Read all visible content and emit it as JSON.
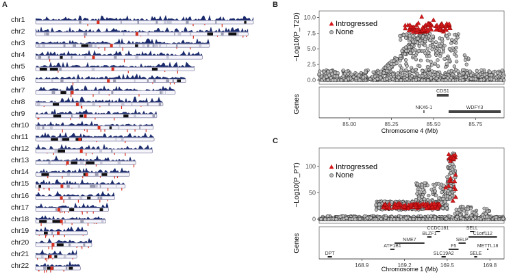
{
  "panels": {
    "a": "A",
    "b": "B",
    "c": "C"
  },
  "karyogram": {
    "chromosomes": [
      {
        "name": "chr1",
        "length": 248
      },
      {
        "name": "chr2",
        "length": 242
      },
      {
        "name": "chr3",
        "length": 198
      },
      {
        "name": "chr4",
        "length": 190
      },
      {
        "name": "chr5",
        "length": 181
      },
      {
        "name": "chr6",
        "length": 171
      },
      {
        "name": "chr7",
        "length": 159
      },
      {
        "name": "chr8",
        "length": 145
      },
      {
        "name": "chr9",
        "length": 138
      },
      {
        "name": "chr10",
        "length": 134
      },
      {
        "name": "chr11",
        "length": 135
      },
      {
        "name": "chr12",
        "length": 133
      },
      {
        "name": "chr13",
        "length": 114
      },
      {
        "name": "chr14",
        "length": 107
      },
      {
        "name": "chr15",
        "length": 102
      },
      {
        "name": "chr16",
        "length": 90
      },
      {
        "name": "chr17",
        "length": 83
      },
      {
        "name": "chr18",
        "length": 80
      },
      {
        "name": "chr19",
        "length": 59
      },
      {
        "name": "chr20",
        "length": 64
      },
      {
        "name": "chr21",
        "length": 47
      },
      {
        "name": "chr22",
        "length": 51
      }
    ],
    "colors": {
      "track": "#1a2a6c",
      "red": "#d7301f",
      "black": "#111111",
      "outline": "#8888aa"
    }
  },
  "chart_data": [
    {
      "type": "scatter",
      "panel": "B",
      "ylabel": "−Log10(P_T2D)",
      "xlabel": "Chromosome 4 (Mb)",
      "xlim": [
        84.82,
        85.92
      ],
      "ylim": [
        0,
        10.6
      ],
      "xticks": [
        "85.00",
        "85.25",
        "85.50",
        "85.75"
      ],
      "xtick_values": [
        85.0,
        85.25,
        85.5,
        85.75
      ],
      "yticks": [
        "0.0",
        "2.5",
        "5.0",
        "7.5",
        "10.0"
      ],
      "ytick_values": [
        0,
        2.5,
        5.0,
        7.5,
        10.0
      ],
      "legend": [
        "Introgressed",
        "None"
      ],
      "introgressed_peak": {
        "x_start": 85.33,
        "x_end": 85.6,
        "y_low": 7.6,
        "y_high": 10.2
      },
      "genes_label": "Genes",
      "genes": [
        {
          "name": "CDS1",
          "start": 85.52,
          "end": 85.59,
          "row": 1
        },
        {
          "name": "NKX6-1",
          "start": 85.44,
          "end": 85.445,
          "row": 2
        },
        {
          "name": "WDFY3",
          "start": 85.59,
          "end": 85.9,
          "row": 2
        }
      ]
    },
    {
      "type": "scatter",
      "panel": "C",
      "ylabel": "−Log10(P_PT)",
      "xlabel": "Chromosome 1 (Mb)",
      "xlim": [
        168.6,
        169.9
      ],
      "ylim": [
        0,
        130
      ],
      "xticks": [
        "168.9",
        "169.2",
        "169.5",
        "169.8"
      ],
      "xtick_values": [
        168.9,
        169.2,
        169.5,
        169.8
      ],
      "yticks": [
        "0",
        "50",
        "100"
      ],
      "ytick_values": [
        0,
        50,
        100
      ],
      "legend": [
        "Introgressed",
        "None"
      ],
      "introgressed_band": {
        "x_start": 169.05,
        "x_end": 169.45,
        "y_low": 20,
        "y_high": 30
      },
      "genes_label": "Genes",
      "genes": [
        {
          "name": "CCDC181",
          "start": 169.42,
          "end": 169.45,
          "row": 0
        },
        {
          "name": "SELL",
          "start": 169.66,
          "end": 169.69,
          "row": 0
        },
        {
          "name": "BLZF1",
          "start": 169.36,
          "end": 169.39,
          "row": 1
        },
        {
          "name": "C1orf112",
          "start": 169.65,
          "end": 169.85,
          "row": 1
        },
        {
          "name": "NME7",
          "start": 169.13,
          "end": 169.34,
          "row": 2
        },
        {
          "name": "SELP",
          "start": 169.58,
          "end": 169.63,
          "row": 2
        },
        {
          "name": "ATP1B1",
          "start": 169.1,
          "end": 169.13,
          "row": 3
        },
        {
          "name": "F5",
          "start": 169.51,
          "end": 169.58,
          "row": 3
        },
        {
          "name": "METTL18",
          "start": 169.78,
          "end": 169.79,
          "row": 3
        },
        {
          "name": "DPT",
          "start": 168.66,
          "end": 168.69,
          "row": 4
        },
        {
          "name": "SLC19A2",
          "start": 169.46,
          "end": 169.49,
          "row": 4
        },
        {
          "name": "SELE",
          "start": 169.69,
          "end": 169.71,
          "row": 4
        }
      ]
    }
  ]
}
